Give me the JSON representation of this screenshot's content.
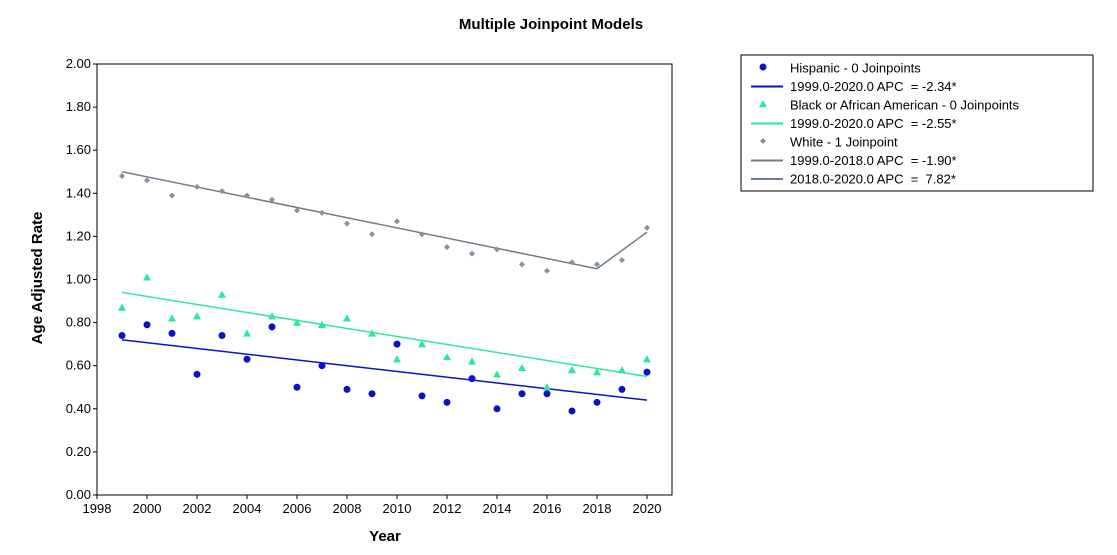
{
  "chart_data": {
    "type": "scatter",
    "title": "Multiple Joinpoint Models",
    "xlabel": "Year",
    "ylabel": "Age Adjusted Rate",
    "xlim": [
      1998,
      2021
    ],
    "ylim": [
      0,
      2
    ],
    "x_ticks": [
      "1998",
      "2000",
      "2002",
      "2004",
      "2006",
      "2008",
      "2010",
      "2012",
      "2014",
      "2016",
      "2018",
      "2020"
    ],
    "y_ticks": [
      "0.00",
      "0.20",
      "0.40",
      "0.60",
      "0.80",
      "1.00",
      "1.20",
      "1.40",
      "1.60",
      "1.80",
      "2.00"
    ],
    "grid": true,
    "legend_position": "right",
    "series": [
      {
        "name": "Hispanic - 0 Joinpoints",
        "color": "#0a12c8",
        "marker": "circle",
        "x": [
          1999,
          2000,
          2001,
          2002,
          2003,
          2004,
          2005,
          2006,
          2007,
          2008,
          2009,
          2010,
          2011,
          2012,
          2013,
          2014,
          2015,
          2016,
          2017,
          2018,
          2019,
          2020
        ],
        "y": [
          0.74,
          0.79,
          0.75,
          0.56,
          0.74,
          0.63,
          0.78,
          0.5,
          0.6,
          0.49,
          0.47,
          0.7,
          0.46,
          0.43,
          0.54,
          0.4,
          0.47,
          0.47,
          0.39,
          0.43,
          0.49,
          0.57
        ]
      },
      {
        "name": "Black or African American - 0 Joinpoints",
        "color": "#2ee89a",
        "marker": "triangle",
        "x": [
          1999,
          2000,
          2001,
          2002,
          2003,
          2004,
          2005,
          2006,
          2007,
          2008,
          2009,
          2010,
          2011,
          2012,
          2013,
          2014,
          2015,
          2016,
          2017,
          2018,
          2019,
          2020
        ],
        "y": [
          0.87,
          1.01,
          0.82,
          0.83,
          0.93,
          0.75,
          0.83,
          0.8,
          0.79,
          0.82,
          0.75,
          0.63,
          0.7,
          0.64,
          0.62,
          0.56,
          0.59,
          0.5,
          0.58,
          0.57,
          0.58,
          0.63
        ]
      },
      {
        "name": "White - 1 Joinpoint",
        "color": "#8a9198",
        "marker": "diamond",
        "x": [
          1999,
          2000,
          2001,
          2002,
          2003,
          2004,
          2005,
          2006,
          2007,
          2008,
          2009,
          2010,
          2011,
          2012,
          2013,
          2014,
          2015,
          2016,
          2017,
          2018,
          2019,
          2020
        ],
        "y": [
          1.48,
          1.46,
          1.39,
          1.43,
          1.41,
          1.39,
          1.37,
          1.32,
          1.31,
          1.26,
          1.21,
          1.27,
          1.21,
          1.15,
          1.12,
          1.14,
          1.07,
          1.04,
          1.08,
          1.07,
          1.09,
          1.24
        ]
      }
    ],
    "fit_lines": [
      {
        "label": "1999.0-2020.0 APC  = -2.34*",
        "color": "#0a12c8",
        "x": [
          1999,
          2020
        ],
        "y": [
          0.72,
          0.44
        ]
      },
      {
        "label": "1999.0-2020.0 APC  = -2.55*",
        "color": "#2ee89a",
        "x": [
          1999,
          2020
        ],
        "y": [
          0.94,
          0.55
        ]
      },
      {
        "label": "1999.0-2018.0 APC  = -1.90*",
        "color": "#6e7d8c",
        "x": [
          1999,
          2018
        ],
        "y": [
          1.5,
          1.05
        ]
      },
      {
        "label": "2018.0-2020.0 APC  =  7.82*",
        "color": "#6e7d8c",
        "x": [
          2018,
          2020
        ],
        "y": [
          1.05,
          1.22
        ]
      }
    ],
    "legend": [
      {
        "kind": "marker",
        "marker": "circle",
        "color": "#0a12c8",
        "text": "Hispanic - 0 Joinpoints"
      },
      {
        "kind": "line",
        "color": "#0a12c8",
        "text": "1999.0-2020.0 APC  = -2.34*"
      },
      {
        "kind": "marker",
        "marker": "triangle",
        "color": "#2ee89a",
        "text": "Black or African American - 0 Joinpoints"
      },
      {
        "kind": "line",
        "color": "#2ee89a",
        "text": "1999.0-2020.0 APC  = -2.55*"
      },
      {
        "kind": "marker",
        "marker": "diamond",
        "color": "#8a9198",
        "text": "White - 1 Joinpoint"
      },
      {
        "kind": "line",
        "color": "#6e7d8c",
        "text": "1999.0-2018.0 APC  = -1.90*"
      },
      {
        "kind": "line",
        "color": "#6e7d8c",
        "text": "2018.0-2020.0 APC  =  7.82*"
      }
    ]
  }
}
